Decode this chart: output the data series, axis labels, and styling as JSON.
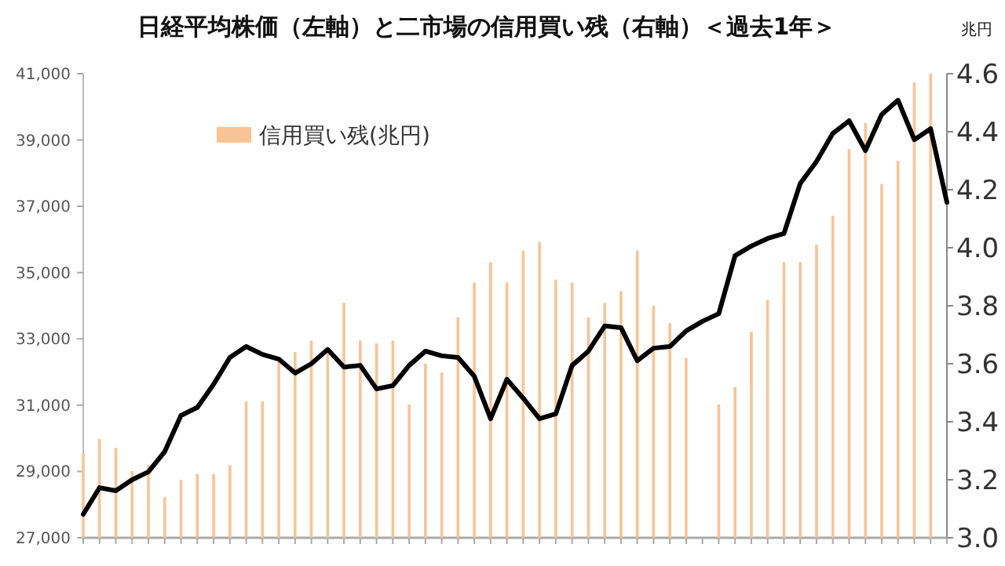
{
  "chart_data": {
    "type": "bar",
    "title": "日経平均株価（左軸）と二市場の信用買い残（右軸）＜過去1年＞",
    "y2label": "兆円",
    "categories": [
      null,
      null,
      null,
      null,
      null,
      null,
      null,
      null,
      null,
      null,
      null,
      null,
      null,
      null,
      null,
      null,
      null,
      null,
      null,
      null,
      null,
      null,
      null,
      null,
      null,
      null,
      null,
      null,
      null,
      null,
      null,
      null,
      null,
      null,
      null,
      null,
      null,
      null,
      null,
      null,
      null,
      null,
      null,
      null,
      null,
      null,
      null,
      null,
      null,
      null,
      null,
      null,
      null,
      null
    ],
    "series": [
      {
        "name": "信用買い残(兆円)",
        "axis": "y2",
        "color": "#f9c396",
        "values": [
          3.29,
          3.34,
          3.31,
          3.23,
          3.25,
          3.14,
          3.2,
          3.22,
          3.22,
          3.25,
          3.47,
          3.47,
          3.61,
          3.64,
          3.68,
          3.64,
          3.81,
          3.68,
          3.67,
          3.68,
          3.46,
          3.6,
          3.57,
          3.76,
          3.88,
          3.95,
          3.88,
          3.99,
          4.02,
          3.89,
          3.88,
          3.76,
          3.81,
          3.85,
          3.99,
          3.8,
          3.74,
          3.62,
          null,
          3.46,
          3.52,
          3.71,
          3.82,
          3.95,
          3.95,
          4.01,
          4.11,
          4.34,
          4.43,
          4.22,
          4.3,
          4.57,
          4.6,
          null
        ]
      },
      {
        "type": "line",
        "axis": "y",
        "color": "#000000",
        "values": [
          27710,
          28510,
          28420,
          28750,
          28990,
          29600,
          30690,
          30930,
          31630,
          32440,
          32770,
          32530,
          32390,
          31970,
          32250,
          32680,
          32150,
          32200,
          31490,
          31590,
          32200,
          32630,
          32490,
          32440,
          31870,
          30590,
          31780,
          31210,
          30590,
          30740,
          32200,
          32630,
          33390,
          33340,
          32340,
          32720,
          32770,
          33240,
          33530,
          33760,
          35510,
          35800,
          36030,
          36180,
          37690,
          38350,
          39200,
          39580,
          38680,
          39770,
          40200,
          39010,
          39340,
          37120
        ]
      }
    ],
    "ylim": [
      27000,
      41000
    ],
    "yticks": [
      {
        "value": 27000,
        "label": "27,000"
      },
      {
        "value": 29000,
        "label": "29,000"
      },
      {
        "value": 31000,
        "label": "31,000"
      },
      {
        "value": 33000,
        "label": "33,000"
      },
      {
        "value": 35000,
        "label": "35,000"
      },
      {
        "value": 37000,
        "label": "37,000"
      },
      {
        "value": 39000,
        "label": "39,000"
      },
      {
        "value": 41000,
        "label": "41,000"
      }
    ],
    "y2lim": [
      3.0,
      4.6
    ],
    "y2ticks": [
      {
        "value": 3.0,
        "label": "3.0"
      },
      3.2,
      3.4,
      3.6,
      3.8,
      {
        "value": 4.0,
        "label": "4.0"
      },
      4.2,
      4.4,
      4.6
    ],
    "legend": "top left"
  }
}
